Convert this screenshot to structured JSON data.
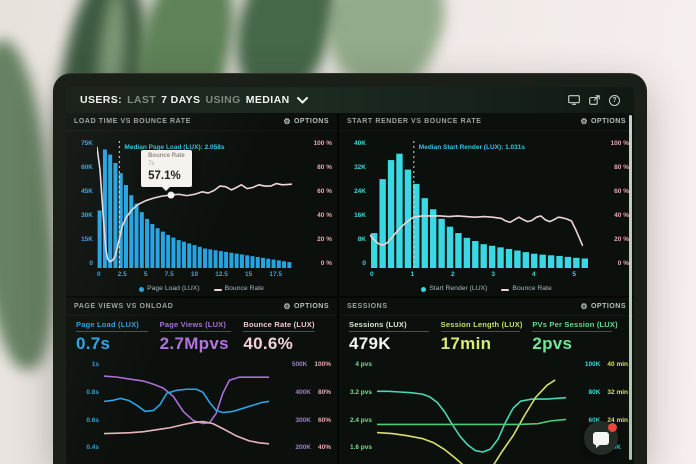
{
  "topbar": {
    "users": "USERS:",
    "last": "LAST",
    "days": "7 DAYS",
    "using": "USING",
    "median": "MEDIAN"
  },
  "options_label": "OPTIONS",
  "icons": {
    "gear_glyph": "⚙",
    "help_glyph": "?"
  },
  "panels": {
    "load_time": {
      "title": "LOAD TIME VS BOUNCE RATE",
      "median_annotation": "Median Page Load (LUX): 2.058s",
      "tooltip": {
        "title": "Bounce Rate",
        "sub": "7s",
        "value": "57.1%"
      },
      "legend": {
        "series1": "Page Load (LUX)",
        "series2": "Bounce Rate"
      }
    },
    "start_render": {
      "title": "START RENDER VS BOUNCE RATE",
      "median_annotation": "Median Start Render (LUX): 1.031s",
      "legend": {
        "series1": "Start Render (LUX)",
        "series2": "Bounce Rate"
      }
    },
    "page_views": {
      "title": "PAGE VIEWS VS ONLOAD",
      "metrics": [
        {
          "label": "Page Load (LUX)",
          "value": "0.7s",
          "label_color": "#2f9fd8",
          "value_color": "#2aa6e8"
        },
        {
          "label": "Page Views (LUX)",
          "value": "2.7Mpvs",
          "label_color": "#a86fd6",
          "value_color": "#b273e2"
        },
        {
          "label": "Bounce Rate (LUX)",
          "value": "40.6%",
          "label_color": "#f0c6cc",
          "value_color": "#f6d2d8"
        }
      ]
    },
    "sessions": {
      "title": "SESSIONS",
      "metrics": [
        {
          "label": "Sessions (LUX)",
          "value": "479K",
          "label_color": "#dce6d4",
          "value_color": "#f2f6ee"
        },
        {
          "label": "Session Length (LUX)",
          "value": "17min",
          "label_color": "#ccdf66",
          "value_color": "#d9eb72"
        },
        {
          "label": "PVs Per Session (LUX)",
          "value": "2pvs",
          "label_color": "#66d98a",
          "value_color": "#72e698"
        }
      ]
    }
  },
  "chart_data": [
    {
      "id": "load_time",
      "type": "histogram+line",
      "title": "LOAD TIME VS BOUNCE RATE",
      "x_ticks": [
        "0",
        "2.5",
        "5",
        "7.5",
        "10",
        "12.5",
        "15",
        "17.5"
      ],
      "x_color": "#3aa3e0",
      "x_range_seconds": [
        0,
        18.5
      ],
      "left_axis": {
        "ticks": [
          "75K",
          "60K",
          "45K",
          "30K",
          "15K",
          "0"
        ],
        "color": "#3aa3e0",
        "max": "75K"
      },
      "right_axis": {
        "ticks": [
          "100 %",
          "80 %",
          "60 %",
          "40 %",
          "20 %",
          "0 %"
        ],
        "color": "#e9a8b2"
      },
      "bars": {
        "name": "Page Load (LUX)",
        "color": "#27a3e2",
        "ymax": 75,
        "values": [
          34,
          70,
          67,
          62,
          56,
          49,
          43,
          38,
          33,
          29,
          26,
          23.5,
          21.5,
          19.5,
          18,
          16.5,
          15.5,
          14.5,
          13.5,
          12.5,
          11.5,
          11,
          10.5,
          10,
          9.5,
          9,
          8.5,
          8,
          7.5,
          7,
          6.5,
          6,
          5.5,
          5,
          4.5,
          4,
          3.5
        ]
      },
      "lines": [
        {
          "name": "Bounce Rate",
          "color": "#eed6d8",
          "plot_range": [
            0,
            100
          ],
          "x_pct": [
            0,
            1.5,
            3,
            4.5,
            5.5,
            6.5,
            8,
            9.5,
            11,
            13,
            15,
            18,
            21,
            25,
            29,
            33,
            38,
            42,
            46,
            50,
            54,
            57,
            60,
            63,
            66,
            69,
            71,
            74,
            77,
            80,
            83,
            86,
            89,
            92,
            95,
            100
          ],
          "values": [
            95,
            78,
            45,
            15,
            7,
            5,
            6,
            10,
            20,
            33,
            40,
            46,
            50,
            53,
            55,
            56.5,
            57.5,
            58,
            57,
            58,
            60,
            59,
            61,
            64.5,
            64,
            61.5,
            63,
            65.5,
            62.5,
            63.5,
            65.5,
            64.5,
            64.5,
            66.5,
            65.5,
            66
          ]
        }
      ],
      "median_x_pct": 11.5,
      "tooltip_x_pct": 38,
      "tooltip_value_pct": 57.1
    },
    {
      "id": "start_render",
      "type": "histogram+line",
      "title": "START RENDER VS BOUNCE RATE",
      "x_ticks": [
        "0",
        "1",
        "2",
        "3",
        "4",
        "5"
      ],
      "x_color": "#41d6de",
      "x_range_seconds": [
        0,
        5.3
      ],
      "left_axis": {
        "ticks": [
          "40K",
          "32K",
          "24K",
          "16K",
          "8K",
          "0"
        ],
        "color": "#41d6de",
        "max": "40K"
      },
      "right_axis": {
        "ticks": [
          "100 %",
          "80 %",
          "60 %",
          "40 %",
          "20 %",
          "0 %"
        ],
        "color": "#e9a8b2"
      },
      "bars": {
        "name": "Start Render (LUX)",
        "color": "#3ad8e2",
        "ymax": 40,
        "values": [
          11,
          28,
          34,
          36,
          31,
          26.5,
          22,
          18.5,
          15.5,
          13,
          11,
          9.5,
          8.5,
          7.5,
          7,
          6.5,
          6,
          5.5,
          5,
          4.5,
          4.2,
          4,
          3.8,
          3.5,
          3.2,
          3
        ]
      },
      "lines": [
        {
          "name": "Bounce Rate",
          "color": "#eed6d8",
          "plot_range": [
            0,
            100
          ],
          "x_pct": [
            0,
            2,
            4,
            6,
            8,
            10,
            12,
            14,
            16,
            18,
            20,
            24,
            28,
            32,
            36,
            40,
            44,
            48,
            52,
            56,
            60,
            62,
            64,
            66,
            68,
            70,
            72,
            74,
            76,
            78,
            80,
            82,
            84,
            86,
            88,
            90,
            92,
            94,
            96,
            97
          ],
          "values": [
            26,
            22,
            19,
            18,
            20,
            24,
            28,
            32,
            35,
            38,
            40,
            41,
            41,
            41,
            40.5,
            41,
            40.5,
            40,
            40.5,
            40,
            39,
            37,
            36,
            38,
            40,
            38,
            36.5,
            37.5,
            40,
            41,
            38,
            36.5,
            38,
            40,
            39.5,
            38.5,
            37,
            30,
            22,
            18
          ]
        }
      ],
      "median_x_pct": 20
    },
    {
      "id": "page_views",
      "type": "line",
      "title": "PAGE VIEWS VS ONLOAD",
      "left_axis": {
        "ticks": [
          "1s",
          "0.8s",
          "0.6s",
          "0.4s"
        ],
        "color": "#2f9fd8"
      },
      "right_axis": {
        "rows": [
          [
            "500K",
            "100%"
          ],
          [
            "400K",
            "80%"
          ],
          [
            "300K",
            "60%"
          ],
          [
            "200K",
            "40%"
          ]
        ],
        "col1_color": "#9a83bd",
        "col2_color": "#e9a8b2"
      },
      "lines": [
        {
          "name": "Page Views (LUX)",
          "color": "#a86fd6",
          "plot_range": [
            163,
            520
          ],
          "x_pct": [
            0,
            8,
            16,
            24,
            30,
            36,
            42,
            48,
            54,
            60,
            64,
            68,
            72,
            76,
            82,
            90,
            100
          ],
          "values": [
            474,
            470,
            463,
            456,
            445,
            431,
            402,
            349,
            317,
            306,
            309,
            342,
            413,
            459,
            470,
            470,
            470
          ]
        },
        {
          "name": "Page Load (LUX)",
          "color": "#2aa6e8",
          "plot_range": [
            0.325,
            1.04
          ],
          "x_pct": [
            0,
            5,
            10,
            15,
            20,
            25,
            30,
            34,
            38,
            44,
            50,
            56,
            60,
            64,
            68,
            72,
            78,
            84,
            90,
            96,
            100
          ],
          "values": [
            0.768,
            0.775,
            0.79,
            0.775,
            0.74,
            0.697,
            0.704,
            0.747,
            0.825,
            0.847,
            0.854,
            0.854,
            0.833,
            0.761,
            0.704,
            0.69,
            0.697,
            0.718,
            0.74,
            0.761,
            0.768
          ]
        },
        {
          "name": "Bounce Rate (LUX)",
          "color": "#e5b5bb",
          "plot_range": [
            32.5,
            104
          ],
          "x_pct": [
            0,
            8,
            16,
            24,
            32,
            40,
            48,
            54,
            60,
            66,
            72,
            80,
            88,
            94,
            100
          ],
          "values": [
            54,
            54.3,
            54.7,
            55.4,
            56.8,
            58.2,
            60.4,
            61.8,
            62.5,
            61.1,
            57.5,
            52.5,
            48.9,
            47.5,
            46.8
          ]
        }
      ]
    },
    {
      "id": "sessions",
      "type": "line",
      "title": "SESSIONS",
      "left_axis": {
        "ticks": [
          "4 pvs",
          "3.2 pvs",
          "2.4 pvs",
          "1.6 pvs"
        ],
        "color": "#7adf96"
      },
      "right_axis": {
        "rows": [
          [
            "100K",
            "40 min"
          ],
          [
            "80K",
            "32 min"
          ],
          [
            "60K",
            "24 min"
          ],
          [
            "40K",
            ""
          ]
        ],
        "col1_color": "#41d6de",
        "col2_color": "#d4e06b"
      },
      "lines": [
        {
          "name": "Sessions (LUX)",
          "color": "#49d6b2",
          "plot_range": [
            32.5,
            104
          ],
          "x_pct": [
            0,
            6,
            12,
            18,
            24,
            28,
            32,
            36,
            40,
            44,
            48,
            52,
            56,
            60,
            64,
            68,
            72,
            76,
            82,
            90,
            100
          ],
          "values": [
            84,
            84,
            83.5,
            83,
            82,
            80,
            76,
            69,
            60,
            52,
            46,
            42,
            41,
            43,
            50,
            62,
            72,
            77,
            78.5,
            78.5,
            79.5
          ]
        },
        {
          "name": "Session Length (LUX)",
          "color": "#d8e06b",
          "plot_range": [
            13,
            41.6
          ],
          "x_pct": [
            0,
            8,
            16,
            24,
            30,
            36,
            42,
            48,
            54,
            58,
            62,
            66,
            72,
            78,
            84,
            90,
            94
          ],
          "values": [
            21.9,
            21.6,
            21,
            20.2,
            19,
            17,
            14.4,
            11.6,
            10.1,
            10.7,
            13,
            16.4,
            21,
            26.7,
            31.9,
            35.3,
            36.7
          ]
        },
        {
          "name": "PVs Per Session (LUX)",
          "color": "#55c878",
          "plot_range": [
            1.3,
            4.16
          ],
          "x_pct": [
            0,
            25,
            50,
            75,
            85,
            92,
            100
          ],
          "values": [
            2.42,
            2.42,
            2.42,
            2.42,
            2.44,
            2.52,
            2.56
          ]
        }
      ]
    }
  ]
}
